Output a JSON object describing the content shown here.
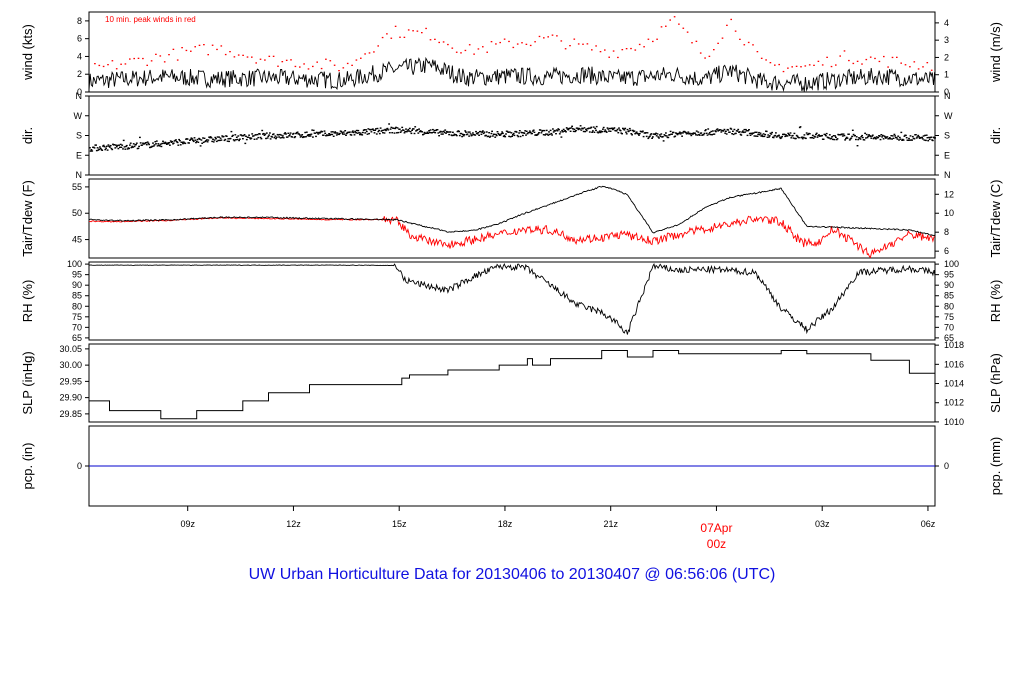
{
  "title": "UW Urban Horticulture Data for 20130406  to  20130407 @ 06:56:06  (UTC)",
  "colors": {
    "main": "#000000",
    "dew": "#ff0000",
    "precip": "#0000cc",
    "title": "#1010e0"
  },
  "chart_data": [
    {
      "id": "wind",
      "type": "line",
      "ylabel_left": "wind (kts)",
      "ylabel_right": "wind (m/s)",
      "ylim": [
        0,
        9
      ],
      "yticks_left": [
        0,
        2,
        4,
        6,
        8
      ],
      "ylim_right": [
        0,
        4.63
      ],
      "yticks_right": [
        0,
        1,
        2,
        3,
        4
      ],
      "annotation": "10 min. peak winds in red",
      "series": [
        {
          "values_hours": [
            0,
            2.8,
            5,
            7,
            8,
            10,
            11.8,
            13.3,
            14.7,
            16.5,
            18,
            19.3,
            20.5,
            21.6,
            22.8,
            24,
            25,
            26.3,
            28,
            29.5,
            31,
            33
          ],
          "values": [
            1.2,
            1.7,
            1.5,
            1.6,
            1.5,
            1.3,
            2.5,
            3.0,
            1.6,
            1.8,
            1.7,
            2.0,
            1.5,
            1.7,
            2.0,
            1.4,
            2.4,
            1.1,
            1.0,
            1.5,
            1.8,
            1.3
          ]
        },
        {
          "values_hours": [
            0,
            2.8,
            5,
            7,
            8,
            10,
            11.8,
            13.3,
            14.7,
            16.5,
            18,
            19.3,
            20.5,
            21.6,
            22.8,
            24,
            25,
            26.3,
            28,
            29.5,
            31,
            33
          ],
          "values": [
            2.5,
            4.0,
            5.0,
            3.6,
            3.4,
            2.8,
            6.8,
            6.5,
            4.6,
            5.5,
            6.0,
            5.0,
            4.5,
            5.5,
            8.0,
            4.0,
            8.0,
            3.0,
            2.8,
            4.0,
            3.5,
            3.0
          ]
        }
      ]
    },
    {
      "id": "dir",
      "type": "scatter",
      "ylabel_left": "dir.",
      "ylabel_right": "dir.",
      "ylim": [
        0,
        360
      ],
      "yticks_left": [
        "N",
        "E",
        "S",
        "W",
        "N"
      ],
      "yticks_right": [
        "N",
        "E",
        "S",
        "W",
        "N"
      ],
      "series": [
        {
          "values_hours": [
            0,
            2,
            4,
            6,
            7,
            8,
            10,
            12,
            14,
            16,
            18,
            19,
            20,
            21,
            22,
            23,
            24,
            25,
            27,
            30,
            33
          ],
          "values": [
            122,
            135,
            155,
            172,
            178,
            182,
            190,
            205,
            190,
            185,
            195,
            212,
            205,
            200,
            175,
            190,
            195,
            200,
            180,
            172,
            170
          ]
        }
      ]
    },
    {
      "id": "temp",
      "type": "line",
      "ylabel_left": "Tair/Tdew (F)",
      "ylabel_right": "Tair/Tdew (C)",
      "ylim": [
        41.5,
        56.5
      ],
      "yticks_left": [
        45,
        50,
        55
      ],
      "yticks_right": [
        6,
        8,
        10,
        12
      ],
      "series": [
        {
          "name": "Tair",
          "values_hours": [
            0,
            1,
            3,
            5,
            7,
            9,
            11.5,
            12,
            13,
            14,
            15,
            16,
            17,
            18,
            19,
            20,
            20.5,
            21,
            22,
            23,
            24,
            25,
            26,
            27,
            28,
            30,
            32,
            33
          ],
          "values": [
            48.8,
            48.6,
            48.7,
            49.2,
            49.2,
            49.0,
            48.8,
            48.8,
            47.6,
            46.5,
            46.7,
            48.0,
            50.0,
            51.7,
            53.5,
            55.1,
            54.5,
            53.5,
            46.3,
            47.8,
            51.0,
            53.0,
            53.8,
            54.7,
            47.5,
            47.2,
            46.8,
            45.8
          ]
        },
        {
          "name": "Tdew",
          "values_hours": [
            0,
            1,
            3,
            5,
            7,
            9,
            11.5,
            12,
            12.5,
            13.3,
            14,
            15,
            16,
            17,
            18,
            19,
            20,
            20.8,
            22,
            23,
            24,
            25,
            26,
            27,
            27.8,
            28.5,
            29,
            29.5,
            30.5,
            32,
            33
          ],
          "values": [
            48.5,
            48.4,
            48.6,
            49.1,
            49.0,
            48.8,
            48.8,
            48.5,
            46.0,
            44.6,
            44.0,
            45.0,
            46.0,
            47.0,
            46.8,
            45.0,
            45.4,
            46.0,
            44.7,
            46.0,
            47.0,
            48.0,
            49.0,
            48.4,
            44.3,
            44.5,
            47.0,
            45.5,
            42.2,
            46.0,
            45.2
          ]
        }
      ]
    },
    {
      "id": "rh",
      "type": "line",
      "ylabel_left": "RH (%)",
      "ylabel_right": "RH (%)",
      "ylim": [
        64,
        101
      ],
      "yticks_left": [
        65,
        70,
        75,
        80,
        85,
        90,
        95,
        100
      ],
      "yticks_right": [
        65,
        70,
        75,
        80,
        85,
        90,
        95,
        100
      ],
      "series": [
        {
          "values_hours": [
            0,
            2,
            4,
            6,
            8,
            10,
            11.8,
            12,
            12.3,
            13,
            14,
            15,
            16,
            17,
            18,
            19,
            20,
            20.5,
            21,
            22,
            23,
            24,
            25,
            26,
            27,
            28,
            29,
            30,
            31,
            32,
            33
          ],
          "values": [
            99.5,
            99.5,
            99.5,
            99.5,
            99.5,
            99.5,
            99.4,
            99.2,
            92.5,
            90.3,
            87.5,
            94.0,
            99.0,
            98.5,
            90.0,
            81.0,
            77.0,
            73.0,
            67.0,
            99.0,
            97.0,
            97.5,
            97.0,
            96.0,
            79.0,
            69.0,
            79.0,
            96.0,
            97.0,
            98.0,
            96.0
          ]
        }
      ]
    },
    {
      "id": "slp",
      "type": "line",
      "ylabel_left": "SLP (inHg)",
      "ylabel_right": "SLP (hPa)",
      "ylim": [
        29.825,
        30.065
      ],
      "yticks_left": [
        29.85,
        29.9,
        29.95,
        30.0,
        30.05
      ],
      "yticks_right": [
        1010,
        1012,
        1014,
        1016,
        1018
      ],
      "series": [
        {
          "values_hours": [
            0,
            0.8,
            2.6,
            2.8,
            4,
            4.2,
            5,
            6,
            7,
            8.6,
            10,
            11,
            12,
            12.2,
            12.5,
            13,
            14,
            15,
            16,
            17,
            17.1,
            17.3,
            18,
            19,
            20,
            21,
            22,
            23,
            24,
            25,
            26,
            27,
            28,
            29.5,
            30.5,
            31,
            32,
            33
          ],
          "values": [
            29.89,
            29.86,
            29.86,
            29.835,
            29.835,
            29.86,
            29.86,
            29.89,
            29.915,
            29.94,
            29.94,
            29.94,
            29.94,
            29.96,
            29.97,
            29.97,
            29.985,
            29.985,
            30.0,
            30.0,
            30.02,
            30.0,
            30.02,
            30.02,
            30.045,
            30.025,
            30.045,
            30.035,
            30.035,
            30.035,
            30.035,
            30.045,
            30.035,
            30.035,
            30.015,
            30.015,
            29.975,
            29.965
          ]
        }
      ]
    },
    {
      "id": "pcp",
      "type": "line",
      "ylabel_left": "pcp. (in)",
      "ylabel_right": "pcp. (mm)",
      "ylim": [
        -1,
        1
      ],
      "yticks_left": [
        0
      ],
      "yticks_right": [
        0
      ],
      "series": [
        {
          "values_hours": [
            0,
            33
          ],
          "values": [
            0,
            0
          ]
        }
      ]
    }
  ],
  "x_axis": {
    "ticks": [
      {
        "hours": 2.8,
        "label": "09z"
      },
      {
        "hours": 5.8,
        "label": "12z"
      },
      {
        "hours": 8.8,
        "label": "15z"
      },
      {
        "hours": 11.8,
        "label": "18z"
      },
      {
        "hours": 14.8,
        "label": "21z"
      },
      {
        "hours": 17.8,
        "label": "07Apr",
        "label2": "00z"
      },
      {
        "hours": 20.8,
        "label": "03z"
      },
      {
        "hours": 23.8,
        "label": "06z"
      }
    ]
  }
}
